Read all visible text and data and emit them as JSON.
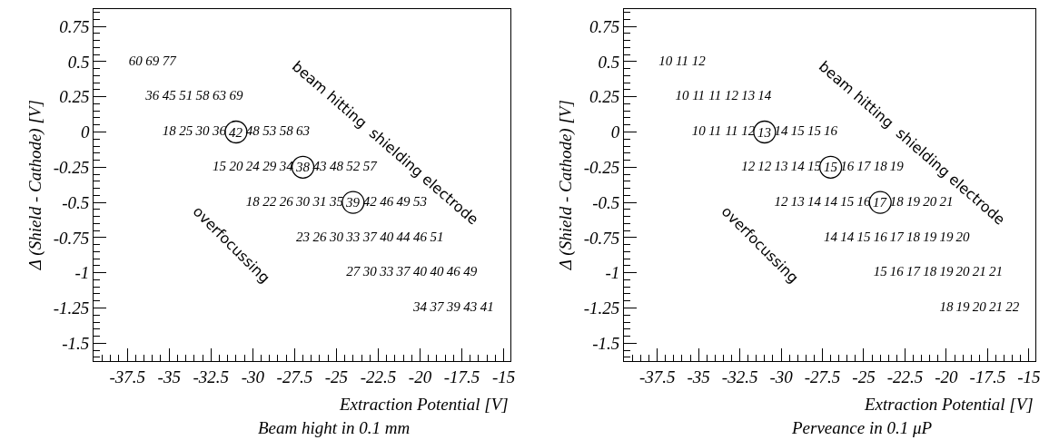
{
  "chart_data": [
    {
      "type": "heatmap",
      "xlabel": "Extraction Potential [V]",
      "ylabel": "Δ (Shield - Cathode) [V]",
      "annotations": [
        "Beam hight in 0.1 mm",
        "beam hitting  shielding electrode",
        "overfocussing",
        {
          "text": "42",
          "x": -31,
          "y": "0"
        },
        {
          "text": "38",
          "x": -27,
          "y": "-0.25"
        },
        {
          "text": "39",
          "x": -24,
          "y": "-0.5"
        }
      ],
      "xlim": [
        -39.5,
        -14.6
      ],
      "xticks": [
        -37.5,
        -35,
        -32.5,
        -30,
        -27.5,
        -25,
        -22.5,
        -20,
        -17.5,
        -15
      ],
      "data_labels": true,
      "x": [
        -37,
        -36,
        -35,
        -34,
        -33,
        -32,
        -31,
        -30,
        -29,
        -28,
        -27,
        -26,
        -25,
        -24,
        -23,
        -22,
        -21,
        -20,
        -19,
        -18,
        -17,
        -16
      ],
      "y_categories": [
        "0.75",
        "0.5",
        "0.25",
        "0",
        "-0.25",
        "-0.5",
        "-0.75",
        "-1",
        "-1.25",
        "-1.5"
      ],
      "cells": [
        [
          null,
          null,
          null,
          null,
          null,
          null,
          null,
          null,
          null,
          null,
          null,
          null,
          null,
          null,
          null,
          null,
          null,
          null,
          null,
          null,
          null,
          null
        ],
        [
          60,
          69,
          77,
          null,
          null,
          null,
          null,
          null,
          null,
          null,
          null,
          null,
          null,
          null,
          null,
          null,
          null,
          null,
          null,
          null,
          null,
          null
        ],
        [
          null,
          36,
          45,
          51,
          58,
          63,
          69,
          null,
          null,
          null,
          null,
          null,
          null,
          null,
          null,
          null,
          null,
          null,
          null,
          null,
          null,
          null
        ],
        [
          null,
          null,
          18,
          25,
          30,
          36,
          null,
          48,
          53,
          58,
          63,
          null,
          null,
          null,
          null,
          null,
          null,
          null,
          null,
          null,
          null,
          null
        ],
        [
          null,
          null,
          null,
          null,
          null,
          15,
          20,
          24,
          29,
          34,
          null,
          43,
          48,
          52,
          57,
          null,
          null,
          null,
          null,
          null,
          null,
          null
        ],
        [
          null,
          null,
          null,
          null,
          null,
          null,
          null,
          18,
          22,
          26,
          30,
          31,
          35,
          null,
          42,
          46,
          49,
          53,
          null,
          null,
          null,
          null
        ],
        [
          null,
          null,
          null,
          null,
          null,
          null,
          null,
          null,
          null,
          null,
          23,
          26,
          30,
          33,
          37,
          40,
          44,
          46,
          51,
          null,
          null,
          null
        ],
        [
          null,
          null,
          null,
          null,
          null,
          null,
          null,
          null,
          null,
          null,
          null,
          null,
          null,
          27,
          30,
          33,
          37,
          40,
          40,
          46,
          49,
          null
        ],
        [
          null,
          null,
          null,
          null,
          null,
          null,
          null,
          null,
          null,
          null,
          null,
          null,
          null,
          null,
          null,
          null,
          null,
          34,
          37,
          39,
          43,
          41
        ],
        [
          null,
          null,
          null,
          null,
          null,
          null,
          null,
          null,
          null,
          null,
          null,
          null,
          null,
          null,
          null,
          null,
          null,
          null,
          null,
          null,
          null,
          null
        ]
      ]
    },
    {
      "type": "heatmap",
      "xlabel": "Extraction Potential [V]",
      "ylabel": "Δ (Shield - Cathode) [V]",
      "annotations": [
        "Perveance in 0.1 μP",
        "beam hitting  shielding electrode",
        "overfocussing",
        {
          "text": "13",
          "x": -31,
          "y": "0"
        },
        {
          "text": "15",
          "x": -27,
          "y": "-0.25"
        },
        {
          "text": "17",
          "x": -24,
          "y": "-0.5"
        }
      ],
      "xlim": [
        -39.5,
        -14.6
      ],
      "xticks": [
        -37.5,
        -35,
        -32.5,
        -30,
        -27.5,
        -25,
        -22.5,
        -20,
        -17.5,
        -15
      ],
      "data_labels": true,
      "x": [
        -37,
        -36,
        -35,
        -34,
        -33,
        -32,
        -31,
        -30,
        -29,
        -28,
        -27,
        -26,
        -25,
        -24,
        -23,
        -22,
        -21,
        -20,
        -19,
        -18,
        -17,
        -16
      ],
      "y_categories": [
        "0.75",
        "0.5",
        "0.25",
        "0",
        "-0.25",
        "-0.5",
        "-0.75",
        "-1",
        "-1.25",
        "-1.5"
      ],
      "cells": [
        [
          null,
          null,
          null,
          null,
          null,
          null,
          null,
          null,
          null,
          null,
          null,
          null,
          null,
          null,
          null,
          null,
          null,
          null,
          null,
          null,
          null,
          null
        ],
        [
          10,
          11,
          12,
          null,
          null,
          null,
          null,
          null,
          null,
          null,
          null,
          null,
          null,
          null,
          null,
          null,
          null,
          null,
          null,
          null,
          null,
          null
        ],
        [
          null,
          10,
          11,
          11,
          12,
          13,
          14,
          null,
          null,
          null,
          null,
          null,
          null,
          null,
          null,
          null,
          null,
          null,
          null,
          null,
          null,
          null
        ],
        [
          null,
          null,
          10,
          11,
          11,
          12,
          null,
          14,
          15,
          15,
          16,
          null,
          null,
          null,
          null,
          null,
          null,
          null,
          null,
          null,
          null,
          null
        ],
        [
          null,
          null,
          null,
          null,
          null,
          12,
          12,
          13,
          14,
          15,
          null,
          16,
          17,
          18,
          19,
          null,
          null,
          null,
          null,
          null,
          null,
          null
        ],
        [
          null,
          null,
          null,
          null,
          null,
          null,
          null,
          12,
          13,
          14,
          14,
          15,
          16,
          null,
          18,
          19,
          20,
          21,
          null,
          null,
          null,
          null
        ],
        [
          null,
          null,
          null,
          null,
          null,
          null,
          null,
          null,
          null,
          null,
          14,
          14,
          15,
          16,
          17,
          18,
          19,
          19,
          20,
          null,
          null,
          null
        ],
        [
          null,
          null,
          null,
          null,
          null,
          null,
          null,
          null,
          null,
          null,
          null,
          null,
          null,
          15,
          16,
          17,
          18,
          19,
          20,
          21,
          21,
          null
        ],
        [
          null,
          null,
          null,
          null,
          null,
          null,
          null,
          null,
          null,
          null,
          null,
          null,
          null,
          null,
          null,
          null,
          null,
          18,
          19,
          20,
          21,
          22
        ],
        [
          null,
          null,
          null,
          null,
          null,
          null,
          null,
          null,
          null,
          null,
          null,
          null,
          null,
          null,
          null,
          null,
          null,
          null,
          null,
          null,
          null,
          null
        ]
      ]
    }
  ]
}
